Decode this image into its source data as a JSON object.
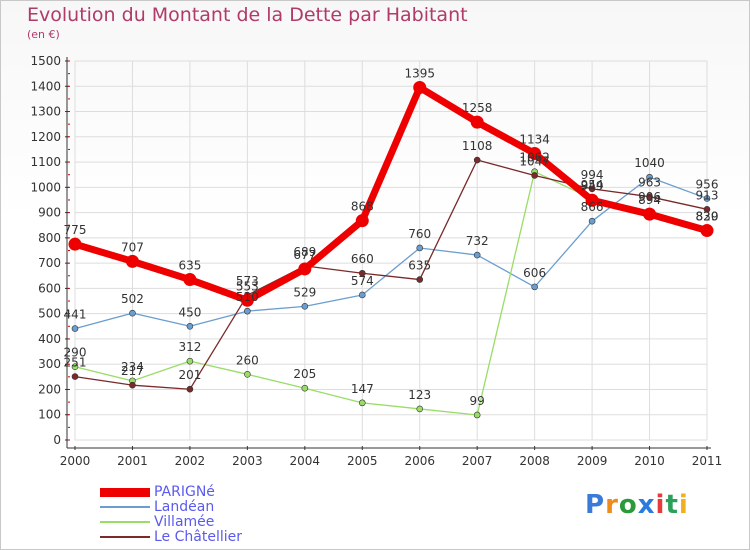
{
  "title": "Evolution du Montant de la Dette par Habitant",
  "subtitle": "(en €)",
  "logo_text": "Proxiti",
  "chart_data": {
    "type": "line",
    "title": "Evolution du Montant de la Dette par Habitant",
    "subtitle": "(en €)",
    "x": [
      "2000",
      "2001",
      "2002",
      "2003",
      "2004",
      "2005",
      "2006",
      "2007",
      "2008",
      "2009",
      "2010",
      "2011"
    ],
    "ylim": [
      0,
      1500
    ],
    "yticks": [
      0,
      100,
      200,
      300,
      400,
      500,
      600,
      700,
      800,
      900,
      1000,
      1100,
      1200,
      1300,
      1400,
      1500
    ],
    "ytick_labels": [
      "0",
      "100",
      "200",
      "300",
      "400",
      "500",
      "600",
      "700",
      "800",
      "900",
      "1000",
      "1100",
      "1200",
      "1300",
      "1400",
      "1500"
    ],
    "grid": true,
    "legend_position": "bottom-left",
    "series": [
      {
        "name": "PARIGNé",
        "color": "#ee0000",
        "values": [
          775,
          707,
          635,
          553,
          677,
          868,
          1395,
          1258,
          1134,
          949,
          894,
          829
        ]
      },
      {
        "name": "Landéan",
        "color": "#6a9ecf",
        "values": [
          441,
          502,
          450,
          510,
          529,
          574,
          760,
          732,
          606,
          866,
          1040,
          956
        ]
      },
      {
        "name": "Villamée",
        "color": "#99dd66",
        "values": [
          290,
          234,
          312,
          260,
          205,
          147,
          123,
          99,
          1062,
          954,
          906,
          830
        ]
      },
      {
        "name": "Le Châtellier",
        "color": "#7a2a2a",
        "values": [
          251,
          217,
          201,
          573,
          689,
          660,
          635,
          1108,
          1047,
          994,
          963,
          913
        ]
      }
    ]
  }
}
